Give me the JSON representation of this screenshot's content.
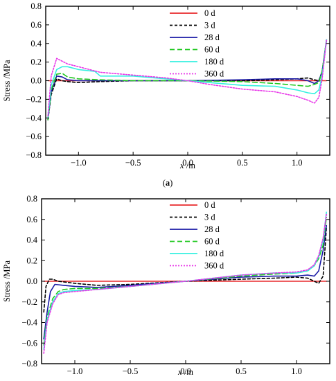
{
  "chart_data": [
    {
      "type": "line",
      "panel_label": "(a)",
      "xlabel": "x /m",
      "ylabel": "Stress /MPa",
      "xlim": [
        -1.3,
        1.3
      ],
      "ylim": [
        -0.8,
        0.8
      ],
      "x_ticks": [
        -1.0,
        -0.5,
        0.0,
        0.5,
        1.0
      ],
      "x_tick_labels": [
        "−1.0",
        "−0.5",
        "0.0",
        "0.5",
        "1.0"
      ],
      "y_ticks": [
        -0.8,
        -0.6,
        -0.4,
        -0.2,
        0.0,
        0.2,
        0.4,
        0.6,
        0.8
      ],
      "y_tick_labels": [
        "−0.8",
        "−0.6",
        "−0.4",
        "−0.2",
        "0.0",
        "0.2",
        "0.4",
        "0.6",
        "0.8"
      ],
      "legend_position": "top-center",
      "series": [
        {
          "name": "0 d",
          "color": "#e8292b",
          "dash": "",
          "x": [
            -1.28,
            -1.22,
            -1.15,
            -1.0,
            -0.5,
            0.0,
            0.5,
            1.0,
            1.15,
            1.22,
            1.27
          ],
          "y": [
            0.0,
            0.0,
            0.0,
            0.0,
            0.0,
            0.0,
            0.0,
            0.0,
            0.0,
            0.0,
            0.0
          ]
        },
        {
          "name": "3 d",
          "color": "#000000",
          "dash": "4,3",
          "x": [
            -1.28,
            -1.25,
            -1.2,
            -1.15,
            -1.1,
            -1.0,
            -0.8,
            -0.5,
            0.0,
            0.5,
            0.8,
            1.0,
            1.1,
            1.16,
            1.2,
            1.23,
            1.27
          ],
          "y": [
            -0.42,
            -0.15,
            0.02,
            0.0,
            -0.01,
            -0.02,
            -0.01,
            0.0,
            0.0,
            0.0,
            0.01,
            0.02,
            0.03,
            0.01,
            0.0,
            0.1,
            0.43
          ]
        },
        {
          "name": "28 d",
          "color": "#1a1aa6",
          "dash": "",
          "x": [
            -1.28,
            -1.25,
            -1.2,
            -1.15,
            -1.1,
            -1.0,
            -0.8,
            -0.5,
            0.0,
            0.5,
            0.8,
            1.0,
            1.1,
            1.16,
            1.2,
            1.23,
            1.27
          ],
          "y": [
            -0.42,
            -0.12,
            0.05,
            0.04,
            0.01,
            0.0,
            0.0,
            0.0,
            0.0,
            0.01,
            0.02,
            0.02,
            0.0,
            -0.03,
            0.0,
            0.1,
            0.44
          ]
        },
        {
          "name": "60 d",
          "color": "#22c922",
          "dash": "7,4",
          "x": [
            -1.28,
            -1.25,
            -1.2,
            -1.15,
            -1.1,
            -1.0,
            -0.8,
            -0.5,
            0.0,
            0.5,
            0.8,
            1.0,
            1.1,
            1.16,
            1.2,
            1.23,
            1.27
          ],
          "y": [
            -0.42,
            -0.1,
            0.07,
            0.08,
            0.04,
            0.02,
            0.01,
            0.0,
            0.0,
            -0.01,
            -0.03,
            -0.05,
            -0.06,
            -0.04,
            -0.02,
            0.1,
            0.44
          ]
        },
        {
          "name": "180 d",
          "color": "#35f0e0",
          "dash": "",
          "x": [
            -1.28,
            -1.25,
            -1.2,
            -1.15,
            -1.1,
            -1.0,
            -0.85,
            -0.8,
            -0.5,
            -0.2,
            0.0,
            0.2,
            0.5,
            0.8,
            1.0,
            1.1,
            1.16,
            1.2,
            1.23,
            1.27
          ],
          "y": [
            -0.4,
            -0.05,
            0.12,
            0.15,
            0.15,
            0.12,
            0.1,
            0.05,
            0.05,
            0.02,
            0.0,
            -0.02,
            -0.05,
            -0.06,
            -0.1,
            -0.13,
            -0.14,
            -0.1,
            0.05,
            0.44
          ]
        },
        {
          "name": "360 d",
          "color": "#e838e8",
          "dash": "2,2",
          "x": [
            -1.28,
            -1.25,
            -1.2,
            -1.15,
            -1.1,
            -1.0,
            -0.8,
            -0.5,
            -0.2,
            0.0,
            0.2,
            0.5,
            0.8,
            1.0,
            1.1,
            1.16,
            1.2,
            1.23,
            1.27
          ],
          "y": [
            -0.38,
            0.05,
            0.24,
            0.21,
            0.18,
            0.15,
            0.09,
            0.06,
            0.03,
            0.0,
            -0.04,
            -0.09,
            -0.12,
            -0.17,
            -0.21,
            -0.24,
            -0.18,
            0.02,
            0.44
          ]
        }
      ]
    },
    {
      "type": "line",
      "panel_label": "(b)",
      "xlabel": "x /m",
      "ylabel": "Stress /MPa",
      "xlim": [
        -1.3,
        1.3
      ],
      "ylim": [
        -0.8,
        0.8
      ],
      "x_ticks": [
        -1.0,
        -0.5,
        0.0,
        0.5,
        1.0
      ],
      "x_tick_labels": [
        "−1.0",
        "−0.5",
        "0.0",
        "0.5",
        "1.0"
      ],
      "y_ticks": [
        -0.8,
        -0.6,
        -0.4,
        -0.2,
        0.0,
        0.2,
        0.4,
        0.6,
        0.8
      ],
      "y_tick_labels": [
        "−0.8",
        "−0.6",
        "−0.4",
        "−0.2",
        "0.0",
        "0.2",
        "0.4",
        "0.6",
        "0.8"
      ],
      "legend_position": "top-center",
      "series": [
        {
          "name": "0 d",
          "color": "#e8292b",
          "dash": "",
          "x": [
            -1.28,
            -1.22,
            -1.0,
            -0.5,
            0.0,
            0.5,
            1.0,
            1.22,
            1.27
          ],
          "y": [
            0.0,
            0.0,
            0.0,
            0.0,
            0.0,
            0.0,
            0.0,
            0.0,
            0.0
          ]
        },
        {
          "name": "3 d",
          "color": "#000000",
          "dash": "4,3",
          "x": [
            -1.28,
            -1.26,
            -1.23,
            -1.2,
            -1.15,
            -1.0,
            -0.8,
            -0.5,
            0.0,
            0.5,
            0.8,
            1.0,
            1.1,
            1.16,
            1.2,
            1.24,
            1.27
          ],
          "y": [
            -0.3,
            -0.05,
            0.02,
            0.02,
            0.0,
            -0.02,
            -0.04,
            -0.03,
            0.0,
            0.02,
            0.03,
            0.04,
            0.03,
            0.0,
            -0.02,
            0.05,
            0.52
          ]
        },
        {
          "name": "28 d",
          "color": "#1a1aa6",
          "dash": "",
          "x": [
            -1.28,
            -1.25,
            -1.22,
            -1.18,
            -1.1,
            -1.0,
            -0.8,
            -0.5,
            0.0,
            0.5,
            0.8,
            1.0,
            1.1,
            1.16,
            1.2,
            1.24,
            1.27
          ],
          "y": [
            -0.56,
            -0.3,
            -0.1,
            -0.03,
            -0.04,
            -0.05,
            -0.06,
            -0.04,
            0.0,
            0.04,
            0.05,
            0.05,
            0.06,
            0.05,
            0.1,
            0.3,
            0.54
          ]
        },
        {
          "name": "60 d",
          "color": "#22c922",
          "dash": "7,4",
          "x": [
            -1.28,
            -1.25,
            -1.2,
            -1.15,
            -1.1,
            -1.0,
            -0.8,
            -0.5,
            0.0,
            0.5,
            0.8,
            1.0,
            1.1,
            1.16,
            1.2,
            1.24,
            1.27
          ],
          "y": [
            -0.62,
            -0.35,
            -0.17,
            -0.1,
            -0.08,
            -0.07,
            -0.07,
            -0.05,
            0.0,
            0.05,
            0.07,
            0.08,
            0.1,
            0.15,
            0.22,
            0.35,
            0.62
          ]
        },
        {
          "name": "180 d",
          "color": "#35f0e0",
          "dash": "",
          "x": [
            -1.28,
            -1.25,
            -1.2,
            -1.15,
            -1.1,
            -1.0,
            -0.8,
            -0.5,
            0.0,
            0.5,
            0.8,
            1.0,
            1.1,
            1.16,
            1.2,
            1.24,
            1.27
          ],
          "y": [
            -0.66,
            -0.38,
            -0.2,
            -0.12,
            -0.1,
            -0.09,
            -0.08,
            -0.05,
            0.0,
            0.06,
            0.08,
            0.08,
            0.1,
            0.15,
            0.24,
            0.4,
            0.67
          ]
        },
        {
          "name": "360 d",
          "color": "#e838e8",
          "dash": "2,2",
          "x": [
            -1.28,
            -1.25,
            -1.2,
            -1.15,
            -1.1,
            -1.0,
            -0.8,
            -0.5,
            0.0,
            0.5,
            0.8,
            1.0,
            1.1,
            1.16,
            1.2,
            1.24,
            1.27
          ],
          "y": [
            -0.7,
            -0.4,
            -0.22,
            -0.13,
            -0.11,
            -0.1,
            -0.08,
            -0.05,
            0.0,
            0.06,
            0.08,
            0.09,
            0.11,
            0.16,
            0.25,
            0.42,
            0.65
          ]
        }
      ]
    }
  ]
}
